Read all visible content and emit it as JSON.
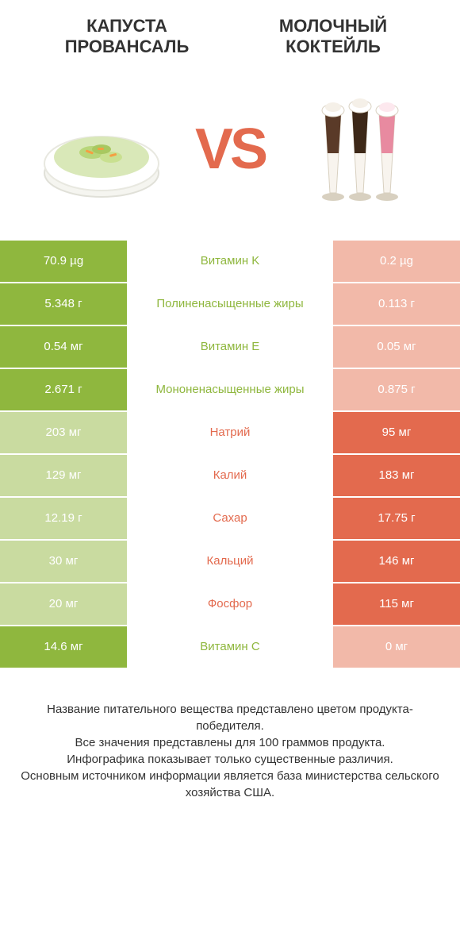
{
  "header": {
    "left_title": "КАПУСТА\nПРОВАНСАЛЬ",
    "right_title": "МОЛОЧНЫЙ\nКОКТЕЙЛЬ",
    "vs_text": "VS"
  },
  "colors": {
    "left": "#8fb73e",
    "right": "#e36a4e",
    "left_dim": "#c9dba0",
    "right_dim": "#f2b9a9",
    "mid_bg_left": "#ffffff",
    "text_left_label": "#8fb73e",
    "text_right_label": "#e36a4e",
    "vs": "#e36a4e"
  },
  "rows": [
    {
      "label": "Витамин K",
      "left": "70.9 µg",
      "right": "0.2 µg",
      "winner": "left"
    },
    {
      "label": "Полиненасыщенные жиры",
      "left": "5.348 г",
      "right": "0.113 г",
      "winner": "left"
    },
    {
      "label": "Витамин E",
      "left": "0.54 мг",
      "right": "0.05 мг",
      "winner": "left"
    },
    {
      "label": "Мононенасыщенные жиры",
      "left": "2.671 г",
      "right": "0.875 г",
      "winner": "left"
    },
    {
      "label": "Натрий",
      "left": "203 мг",
      "right": "95 мг",
      "winner": "right"
    },
    {
      "label": "Калий",
      "left": "129 мг",
      "right": "183 мг",
      "winner": "right"
    },
    {
      "label": "Сахар",
      "left": "12.19 г",
      "right": "17.75 г",
      "winner": "right"
    },
    {
      "label": "Кальций",
      "left": "30 мг",
      "right": "146 мг",
      "winner": "right"
    },
    {
      "label": "Фосфор",
      "left": "20 мг",
      "right": "115 мг",
      "winner": "right"
    },
    {
      "label": "Витамин C",
      "left": "14.6 мг",
      "right": "0 мг",
      "winner": "left"
    }
  ],
  "footer": {
    "line1": "Название питательного вещества представлено цветом продукта-победителя.",
    "line2": "Все значения представлены для 100 граммов продукта.",
    "line3": "Инфографика показывает только существенные различия.",
    "line4": "Основным источником информации является база министерства сельского хозяйства США."
  }
}
